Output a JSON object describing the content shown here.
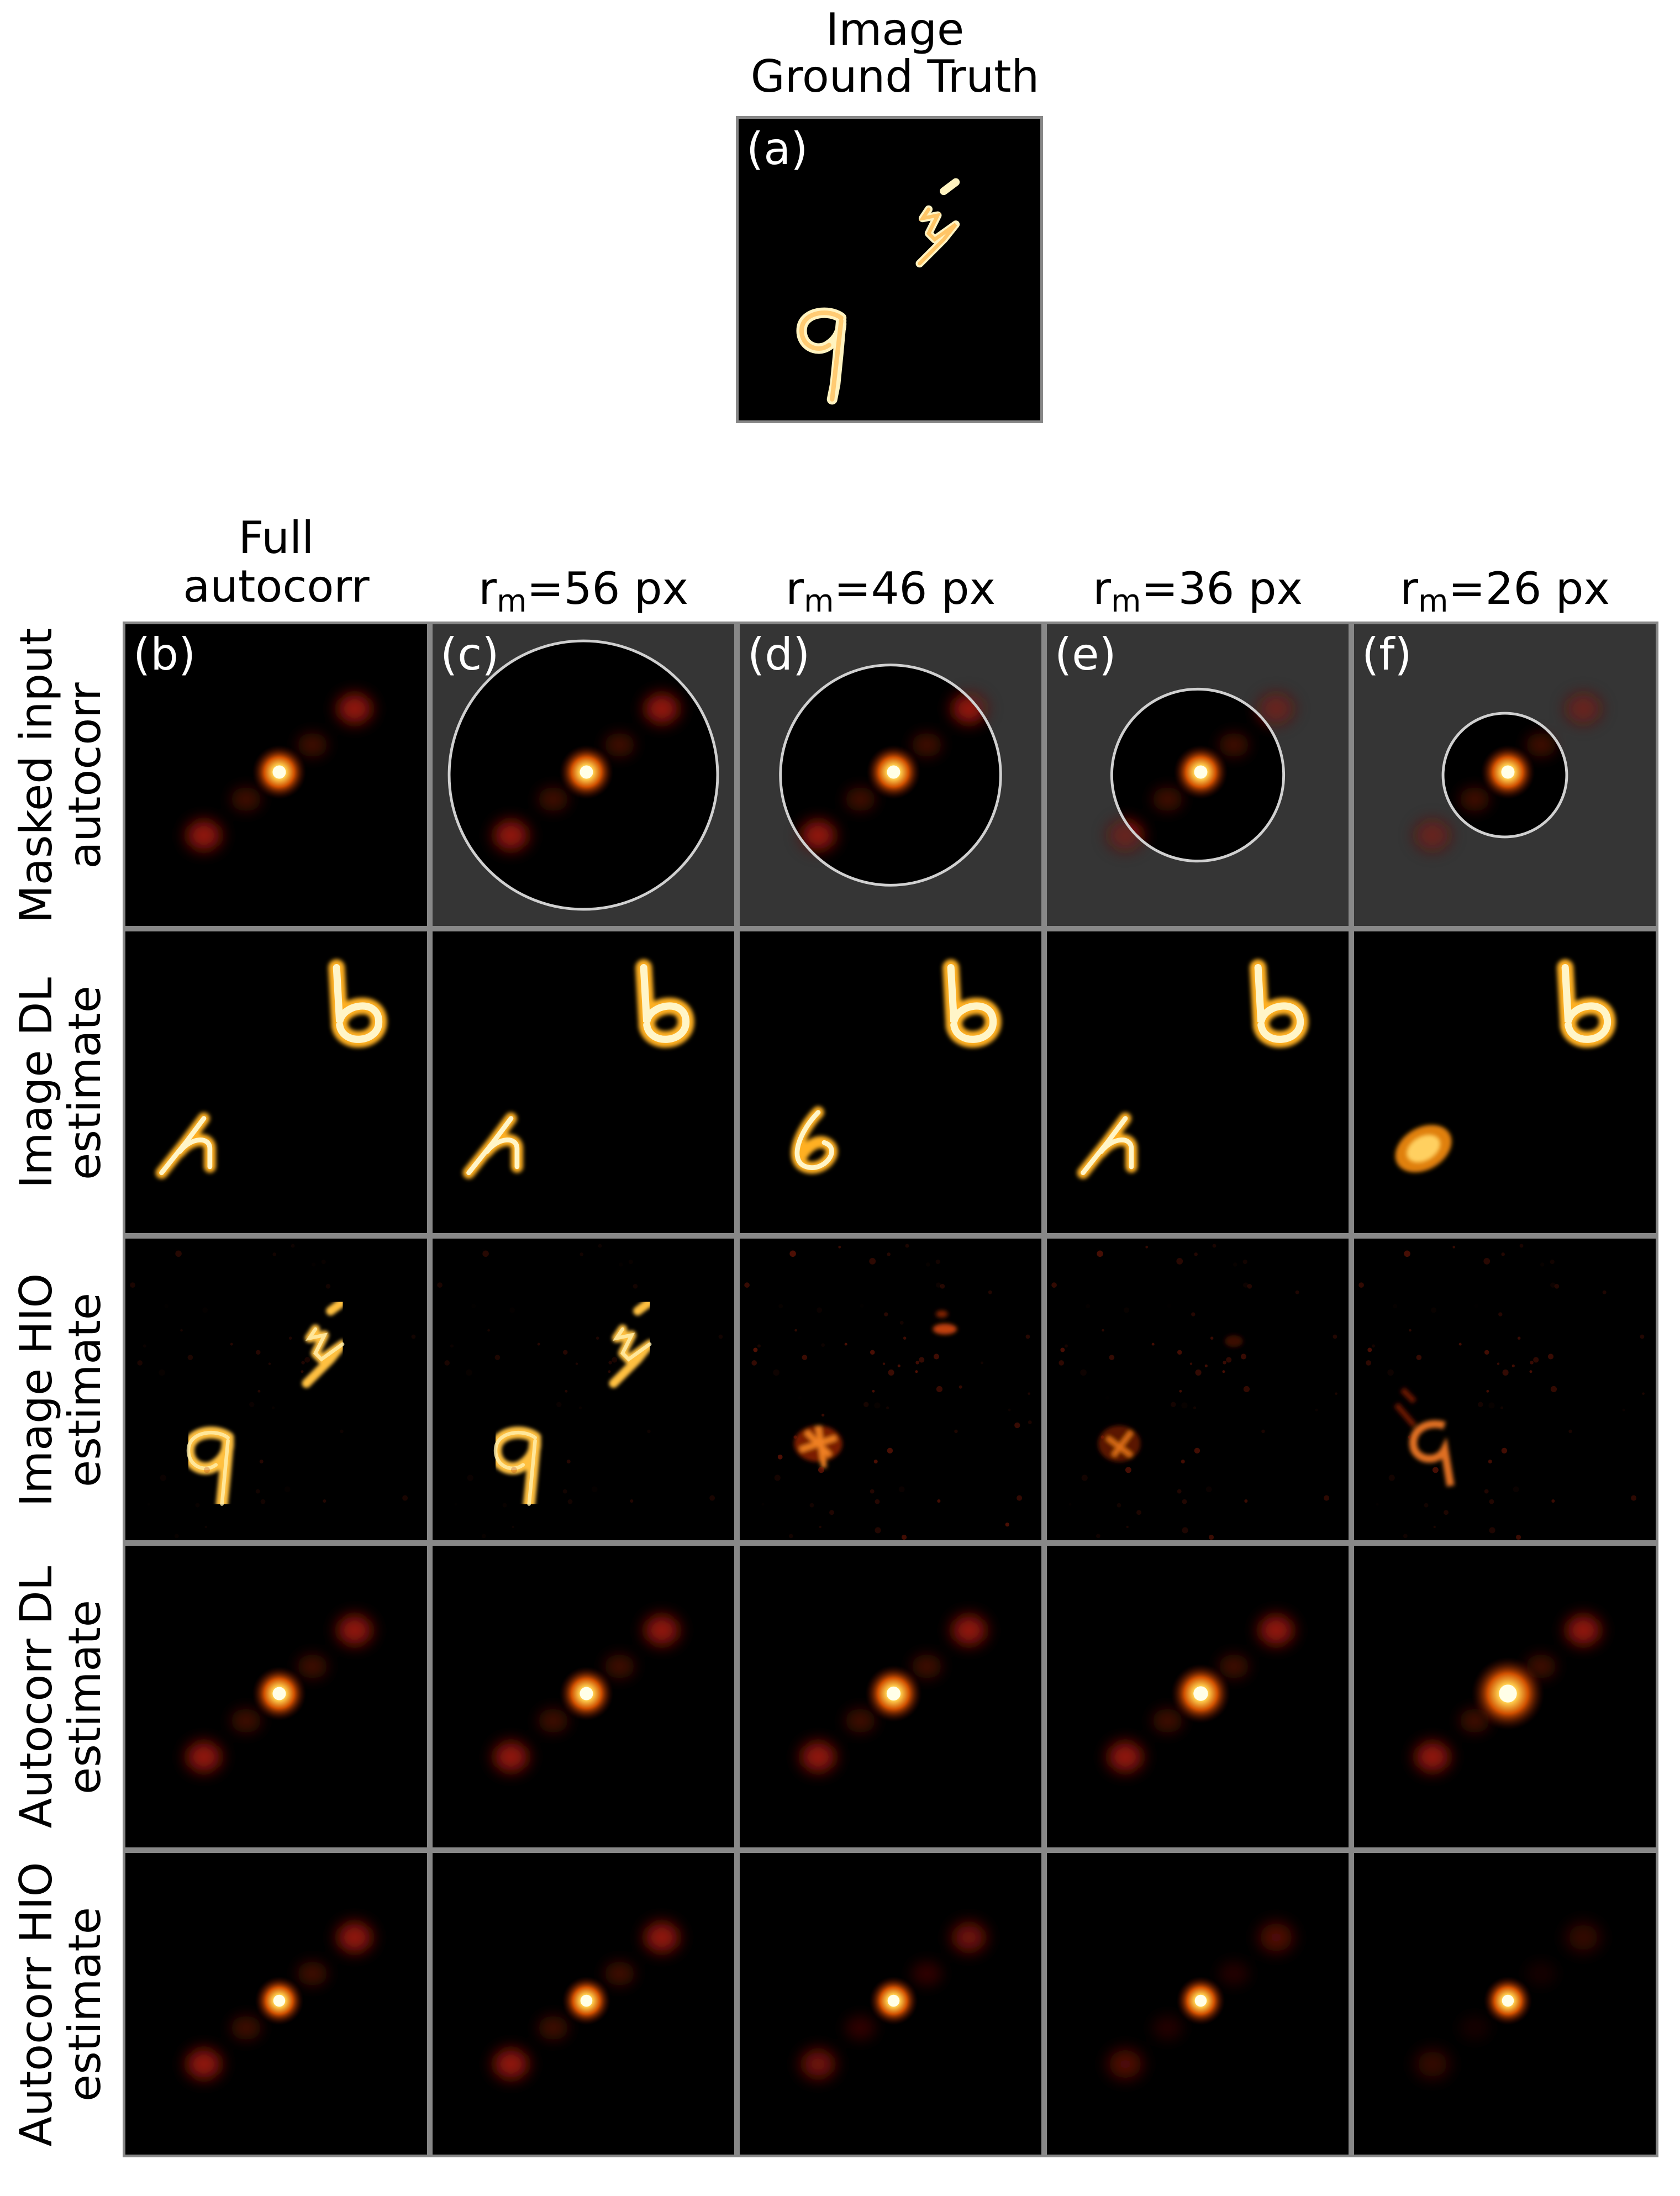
{
  "figure": {
    "ground_truth": {
      "title_lines": [
        "Image",
        "Ground Truth"
      ],
      "panel_label": "(a)"
    },
    "column_headers": [
      {
        "lines": [
          "Full",
          "autocorr"
        ]
      },
      {
        "prefix": "r",
        "sub": "m",
        "suffix": "=56 px"
      },
      {
        "prefix": "r",
        "sub": "m",
        "suffix": "=46 px"
      },
      {
        "prefix": "r",
        "sub": "m",
        "suffix": "=36 px"
      },
      {
        "prefix": "r",
        "sub": "m",
        "suffix": "=26 px"
      }
    ],
    "row_headers": [
      {
        "lines": [
          "Masked input",
          "autocorr"
        ]
      },
      {
        "lines": [
          "Image DL",
          "estimate"
        ]
      },
      {
        "lines": [
          "Image HIO",
          "estimate"
        ]
      },
      {
        "lines": [
          "Autocorr DL",
          "estimate"
        ]
      },
      {
        "lines": [
          "Autocorr HIO",
          "estimate"
        ]
      }
    ],
    "panel_labels": [
      "(b)",
      "(c)",
      "(d)",
      "(e)",
      "(f)"
    ],
    "colormap": "afmhot",
    "mask_radius_px": [
      null,
      56,
      46,
      36,
      26
    ]
  }
}
